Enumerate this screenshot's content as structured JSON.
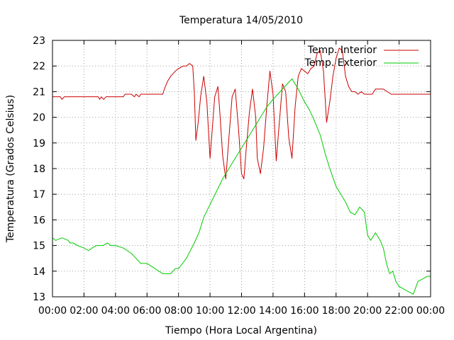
{
  "chart_data": {
    "type": "line",
    "title": "Temperatura 14/05/2010",
    "xlabel": "Tiempo (Hora Local Argentina)",
    "ylabel": "Temperatura (Grados Celsius)",
    "xlim": [
      0,
      24
    ],
    "ylim": [
      13,
      23
    ],
    "grid": true,
    "legend_position": "top-right",
    "x_ticks": [
      0,
      2,
      4,
      6,
      8,
      10,
      12,
      14,
      16,
      18,
      20,
      22,
      24
    ],
    "x_tick_labels": [
      "00:00",
      "02:00",
      "04:00",
      "06:00",
      "08:00",
      "10:00",
      "12:00",
      "14:00",
      "16:00",
      "18:00",
      "20:00",
      "22:00",
      "00:00"
    ],
    "y_ticks": [
      13,
      14,
      15,
      16,
      17,
      18,
      19,
      20,
      21,
      22,
      23
    ],
    "y_tick_labels": [
      "13",
      "14",
      "15",
      "16",
      "17",
      "18",
      "19",
      "20",
      "21",
      "22",
      "23"
    ],
    "series": [
      {
        "name": "Temp. Interior",
        "color": "#cc0000",
        "x": [
          0.0,
          0.5,
          0.6,
          0.75,
          1.0,
          2.0,
          2.9,
          3.0,
          3.1,
          3.25,
          3.4,
          3.5,
          4.0,
          4.5,
          4.6,
          5.0,
          5.2,
          5.3,
          5.5,
          5.6,
          5.8,
          6.0,
          7.0,
          7.1,
          7.3,
          7.5,
          7.8,
          8.0,
          8.3,
          8.5,
          8.7,
          8.9,
          9.0,
          9.1,
          9.25,
          9.4,
          9.6,
          9.8,
          10.0,
          10.15,
          10.3,
          10.5,
          10.6,
          10.8,
          11.0,
          11.2,
          11.4,
          11.6,
          11.8,
          12.0,
          12.15,
          12.3,
          12.5,
          12.7,
          12.9,
          13.0,
          13.2,
          13.4,
          13.6,
          13.8,
          14.0,
          14.2,
          14.4,
          14.6,
          14.8,
          15.0,
          15.2,
          15.4,
          15.6,
          15.8,
          16.0,
          16.2,
          16.4,
          16.6,
          16.8,
          17.0,
          17.2,
          17.4,
          17.6,
          17.8,
          18.0,
          18.2,
          18.4,
          18.6,
          18.8,
          19.0,
          19.2,
          19.4,
          19.6,
          19.8,
          20.0,
          20.3,
          20.5,
          21.0,
          21.5,
          21.8,
          22.0,
          22.3,
          22.5,
          23.0,
          24.0
        ],
        "y": [
          20.8,
          20.8,
          20.7,
          20.8,
          20.8,
          20.8,
          20.8,
          20.7,
          20.8,
          20.7,
          20.8,
          20.8,
          20.8,
          20.8,
          20.9,
          20.9,
          20.8,
          20.9,
          20.8,
          20.9,
          20.9,
          20.9,
          20.9,
          21.1,
          21.4,
          21.6,
          21.8,
          21.9,
          22.0,
          22.0,
          22.1,
          22.0,
          21.0,
          19.1,
          19.8,
          20.8,
          21.6,
          20.6,
          18.4,
          19.6,
          20.8,
          21.2,
          20.4,
          18.5,
          17.6,
          19.2,
          20.8,
          21.1,
          19.6,
          17.8,
          17.6,
          18.8,
          20.2,
          21.1,
          20.0,
          18.4,
          17.8,
          18.8,
          20.4,
          21.8,
          20.9,
          18.3,
          19.8,
          21.3,
          21.0,
          19.2,
          18.4,
          20.4,
          21.6,
          21.9,
          21.8,
          21.7,
          21.9,
          22.0,
          22.5,
          22.6,
          21.8,
          19.8,
          20.6,
          21.6,
          22.3,
          22.7,
          22.6,
          21.6,
          21.2,
          21.0,
          21.0,
          20.9,
          21.0,
          20.9,
          20.9,
          20.9,
          21.1,
          21.1,
          20.9,
          20.9,
          20.9,
          20.9,
          20.9,
          20.9,
          20.9
        ]
      },
      {
        "name": "Temp. Exterior",
        "color": "#00cc00",
        "x": [
          0.0,
          0.2,
          0.6,
          1.0,
          1.1,
          1.3,
          1.6,
          2.0,
          2.3,
          2.5,
          2.8,
          3.0,
          3.2,
          3.5,
          3.7,
          4.0,
          4.5,
          5.0,
          5.3,
          5.6,
          6.0,
          6.5,
          7.0,
          7.5,
          7.8,
          8.0,
          8.5,
          9.0,
          9.3,
          9.6,
          10.0,
          10.4,
          10.8,
          11.2,
          11.6,
          12.0,
          12.4,
          12.8,
          13.2,
          13.6,
          14.0,
          14.3,
          14.6,
          14.9,
          15.2,
          15.6,
          16.0,
          16.3,
          16.6,
          17.0,
          17.3,
          17.6,
          18.0,
          18.3,
          18.6,
          18.9,
          19.2,
          19.5,
          19.8,
          20.0,
          20.2,
          20.5,
          20.8,
          21.0,
          21.2,
          21.4,
          21.6,
          21.8,
          22.0,
          22.3,
          22.6,
          22.9,
          23.2,
          23.5,
          23.8,
          24.0
        ],
        "y": [
          15.3,
          15.2,
          15.3,
          15.2,
          15.1,
          15.1,
          15.0,
          14.9,
          14.8,
          14.9,
          15.0,
          15.0,
          15.0,
          15.1,
          15.0,
          15.0,
          14.9,
          14.7,
          14.5,
          14.3,
          14.3,
          14.1,
          13.9,
          13.9,
          14.1,
          14.1,
          14.5,
          15.1,
          15.5,
          16.1,
          16.6,
          17.1,
          17.6,
          18.0,
          18.4,
          18.8,
          19.2,
          19.6,
          20.0,
          20.4,
          20.7,
          20.9,
          21.1,
          21.3,
          21.5,
          21.1,
          20.6,
          20.3,
          19.9,
          19.3,
          18.6,
          18.0,
          17.3,
          17.0,
          16.7,
          16.3,
          16.2,
          16.5,
          16.3,
          15.4,
          15.2,
          15.5,
          15.2,
          14.9,
          14.3,
          13.9,
          14.0,
          13.6,
          13.4,
          13.3,
          13.2,
          13.1,
          13.6,
          13.7,
          13.8,
          13.8
        ]
      }
    ]
  }
}
